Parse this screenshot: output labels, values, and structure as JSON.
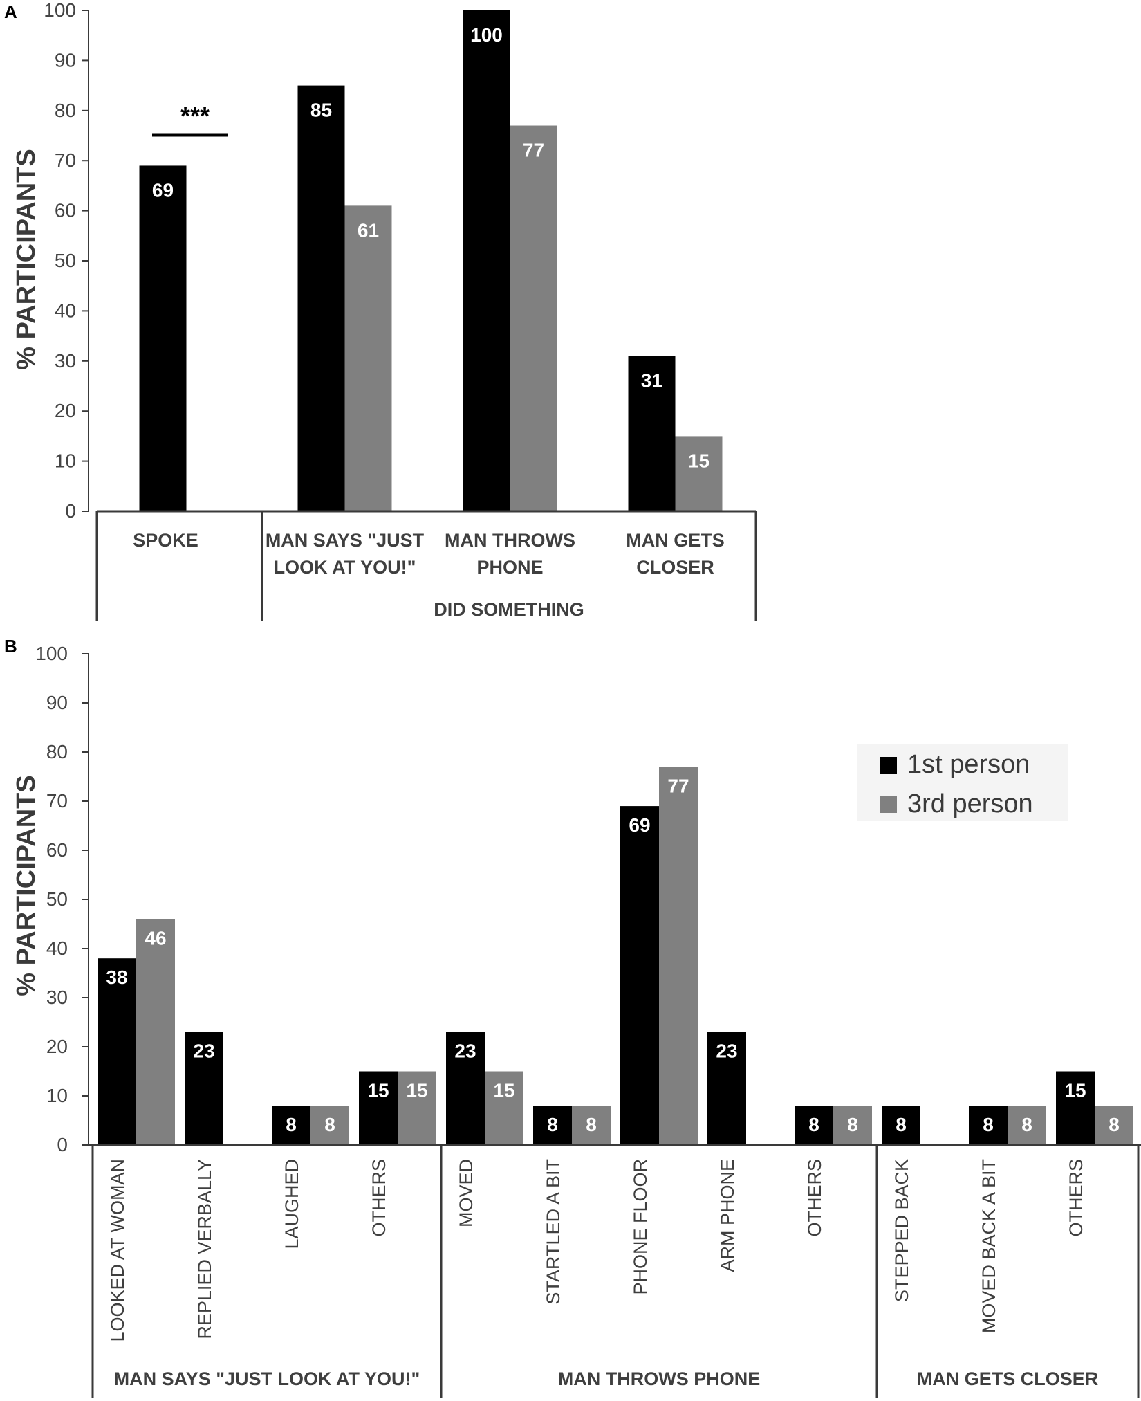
{
  "colors": {
    "first_person": "#000000",
    "third_person": "#808080",
    "axis": "#3a3a3a",
    "tick_text": "#444444",
    "category_text": "#3f3f3f",
    "value_label": "#ffffff",
    "legend_background": "#f4f4f4"
  },
  "legend": {
    "placement": "top-right of panel B",
    "items": [
      {
        "label": "1st person",
        "color": "#000000"
      },
      {
        "label": "3rd person",
        "color": "#808080"
      }
    ]
  },
  "chart_data": [
    {
      "panel_label": "A",
      "type": "bar",
      "ylabel": "% PARTICIPANTS",
      "ylim": [
        0,
        100
      ],
      "yticks": [
        "0",
        "10",
        "20",
        "30",
        "40",
        "50",
        "60",
        "70",
        "80",
        "90",
        "100"
      ],
      "categories": [
        "SPOKE",
        "MAN SAYS \"JUST LOOK AT YOU!\"",
        "MAN THROWS PHONE",
        "MAN GETS CLOSER"
      ],
      "category_label_lines": [
        [
          "SPOKE"
        ],
        [
          "MAN SAYS \"JUST",
          "LOOK AT YOU!\""
        ],
        [
          "MAN THROWS",
          "PHONE"
        ],
        [
          "MAN GETS",
          "CLOSER"
        ]
      ],
      "series": [
        {
          "name": "1st person",
          "values": [
            69,
            85,
            100,
            31
          ]
        },
        {
          "name": "3rd person",
          "values": [
            0,
            61,
            77,
            15
          ]
        }
      ],
      "value_labels": [
        [
          "69",
          "85",
          "100",
          "31"
        ],
        [
          "",
          "61",
          "77",
          "15"
        ]
      ],
      "groups": [
        {
          "label": "",
          "categories": [
            "SPOKE"
          ]
        },
        {
          "label": "DID SOMETHING",
          "categories": [
            "MAN SAYS \"JUST LOOK AT YOU!\"",
            "MAN THROWS PHONE",
            "MAN GETS CLOSER"
          ]
        }
      ],
      "annotation": {
        "text": "***",
        "type": "significance bracket",
        "over_category": "SPOKE"
      }
    },
    {
      "panel_label": "B",
      "type": "bar",
      "ylabel": "% PARTICIPANTS",
      "ylim": [
        0,
        100
      ],
      "yticks": [
        "0",
        "10",
        "20",
        "30",
        "40",
        "50",
        "60",
        "70",
        "80",
        "90",
        "100"
      ],
      "categories": [
        "LOOKED AT WOMAN",
        "REPLIED VERBALLY",
        "LAUGHED",
        "OTHERS",
        "MOVED",
        "STARTLED A BIT",
        "PHONE FLOOR",
        "ARM PHONE",
        "OTHERS",
        "STEPPED BACK",
        "MOVED BACK A BIT",
        "OTHERS"
      ],
      "series": [
        {
          "name": "1st person",
          "values": [
            38,
            23,
            8,
            15,
            23,
            8,
            69,
            23,
            8,
            8,
            8,
            15
          ]
        },
        {
          "name": "3rd person",
          "values": [
            46,
            0,
            8,
            15,
            15,
            8,
            77,
            0,
            8,
            0,
            8,
            8
          ]
        }
      ],
      "value_labels": [
        [
          "38",
          "23",
          "8",
          "15",
          "23",
          "8",
          "69",
          "23",
          "8",
          "8",
          "8",
          "15"
        ],
        [
          "46",
          "",
          "8",
          "15",
          "15",
          "8",
          "77",
          "",
          "8",
          "",
          "8",
          "8"
        ]
      ],
      "groups": [
        {
          "label": "MAN SAYS \"JUST LOOK AT YOU!\"",
          "categories": [
            "LOOKED AT WOMAN",
            "REPLIED VERBALLY",
            "LAUGHED",
            "OTHERS"
          ]
        },
        {
          "label": "MAN THROWS PHONE",
          "categories": [
            "MOVED",
            "STARTLED A BIT",
            "PHONE FLOOR",
            "ARM PHONE",
            "OTHERS"
          ]
        },
        {
          "label": "MAN GETS CLOSER",
          "categories": [
            "STEPPED BACK",
            "MOVED BACK A BIT",
            "OTHERS"
          ]
        }
      ]
    }
  ]
}
